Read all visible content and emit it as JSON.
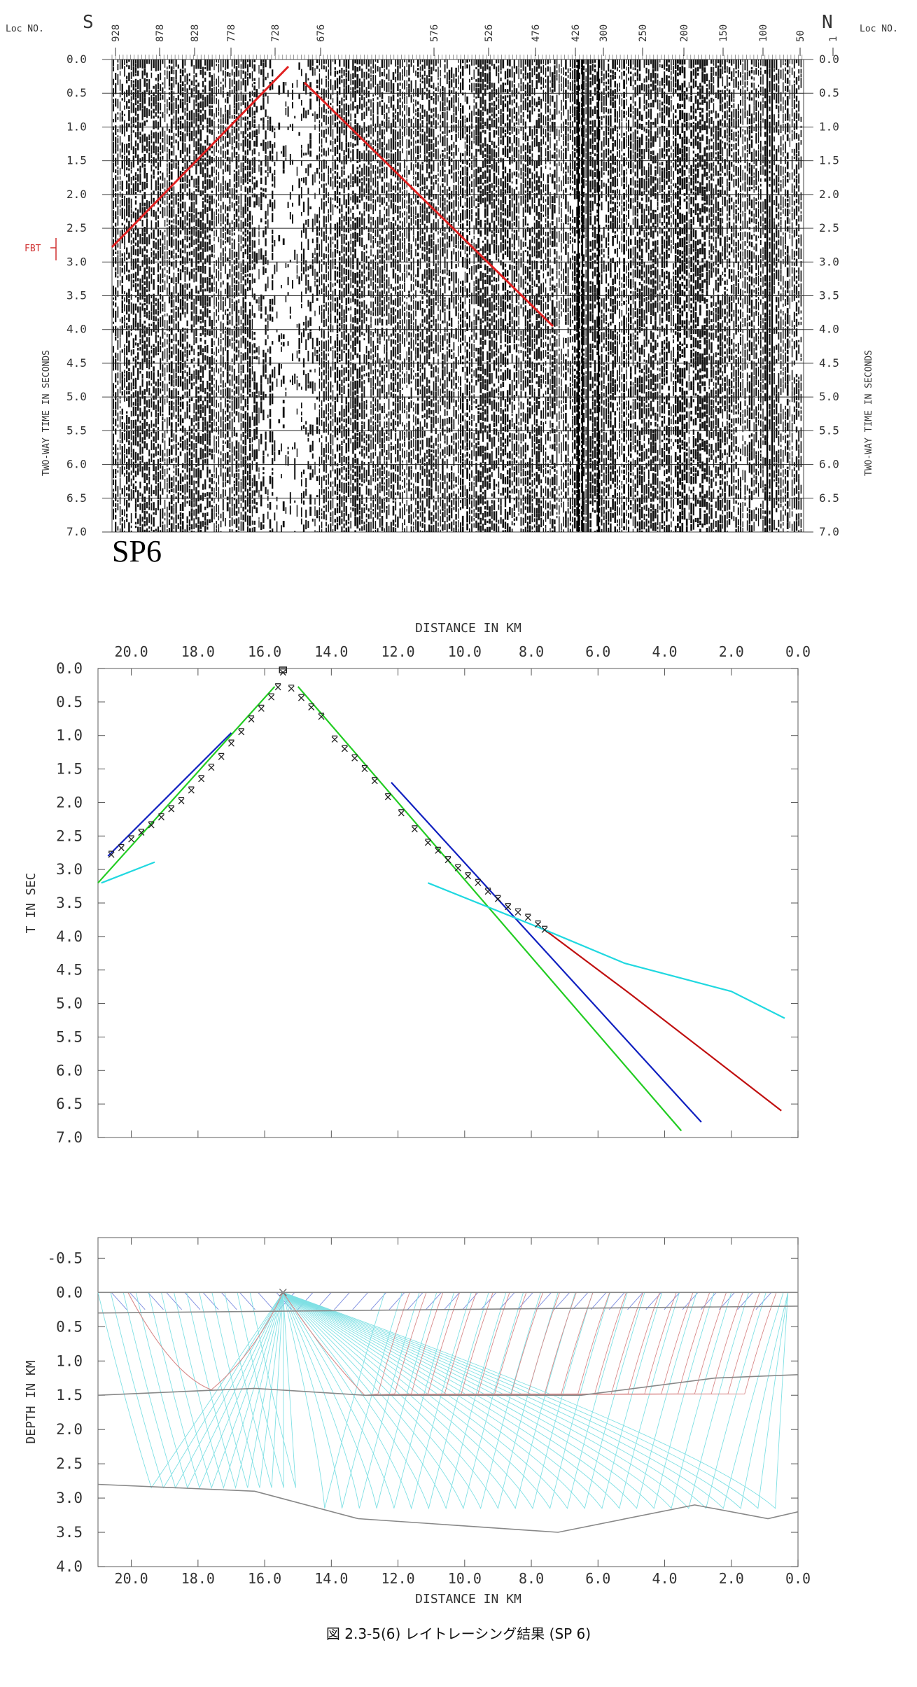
{
  "seismic": {
    "loc_label_left": "Loc NO.",
    "loc_label_right": "Loc NO.",
    "dir_left": "S",
    "dir_right": "N",
    "top_locs": [
      "928",
      "878",
      "828",
      "778",
      "728",
      "676",
      "576",
      "526",
      "476",
      "426",
      "300",
      "250",
      "200",
      "150",
      "100",
      "50",
      "1"
    ],
    "time_ticks": [
      "0.0",
      "0.5",
      "1.0",
      "1.5",
      "2.0",
      "2.5",
      "3.0",
      "3.5",
      "4.0",
      "4.5",
      "5.0",
      "5.5",
      "6.0",
      "6.5",
      "7.0"
    ],
    "axis_label": "TWO-WAY TIME IN SECONDS",
    "fbt_label": "FBT",
    "sp_label": "SP6",
    "pick_line_color": "#e02020"
  },
  "tt": {
    "title": "DISTANCE IN KM",
    "ylabel": "T IN SEC",
    "x_ticks": [
      "20.0",
      "18.0",
      "16.0",
      "14.0",
      "12.0",
      "10.0",
      "8.0",
      "6.0",
      "4.0",
      "2.0",
      "0.0"
    ],
    "y_ticks": [
      "0.0",
      "0.5",
      "1.0",
      "1.5",
      "2.0",
      "2.5",
      "3.0",
      "3.5",
      "4.0",
      "4.5",
      "5.0",
      "5.5",
      "6.0",
      "6.5",
      "7.0"
    ],
    "colors": {
      "green": "#22cc22",
      "blue": "#1020c0",
      "red": "#c01010",
      "cyan": "#20d8e0"
    }
  },
  "depth": {
    "xlabel": "DISTANCE IN KM",
    "ylabel": "DEPTH IN KM",
    "x_ticks": [
      "20.0",
      "18.0",
      "16.0",
      "14.0",
      "12.0",
      "10.0",
      "8.0",
      "6.0",
      "4.0",
      "2.0",
      "0.0"
    ],
    "y_ticks": [
      "-0.5",
      "0.0",
      "0.5",
      "1.0",
      "1.5",
      "2.0",
      "2.5",
      "3.0",
      "3.5",
      "4.0"
    ]
  },
  "chart_data": [
    {
      "type": "line",
      "xlabel": "DISTANCE IN KM",
      "ylabel": "T IN SEC",
      "xlim": [
        21,
        0
      ],
      "ylim": [
        0,
        7
      ],
      "series": [
        {
          "color": "green",
          "x": [
            21,
            15.7
          ],
          "y": [
            3.2,
            0.27
          ]
        },
        {
          "color": "green",
          "x": [
            15.0,
            3.5
          ],
          "y": [
            0.27,
            6.9
          ]
        },
        {
          "color": "blue",
          "x": [
            20.7,
            17.0
          ],
          "y": [
            2.8,
            0.96
          ]
        },
        {
          "color": "blue",
          "x": [
            12.2,
            2.9
          ],
          "y": [
            1.7,
            6.77
          ]
        },
        {
          "color": "red",
          "x": [
            7.6,
            5.0,
            0.5
          ],
          "y": [
            3.9,
            4.87,
            6.6
          ]
        },
        {
          "color": "cyan",
          "x": [
            20.9,
            19.3
          ],
          "y": [
            3.2,
            2.89
          ]
        },
        {
          "color": "cyan",
          "x": [
            11.1,
            7.6,
            5.2,
            2.0,
            0.4
          ],
          "y": [
            3.2,
            3.9,
            4.4,
            4.82,
            5.22
          ]
        }
      ],
      "picks_left": {
        "x": [
          20.6,
          20.3,
          20.0,
          19.7,
          19.4,
          19.1,
          18.8,
          18.5,
          18.2,
          17.9,
          17.6,
          17.3,
          17.0,
          16.7,
          16.4,
          16.1,
          15.8,
          15.6,
          15.45
        ],
        "y": [
          2.78,
          2.68,
          2.55,
          2.45,
          2.34,
          2.22,
          2.1,
          1.98,
          1.82,
          1.65,
          1.48,
          1.32,
          1.12,
          0.95,
          0.76,
          0.6,
          0.43,
          0.28,
          0.06
        ]
      },
      "picks_right": {
        "x": [
          15.2,
          14.9,
          14.6,
          14.3,
          13.9,
          13.6,
          13.3,
          13.0,
          12.7,
          12.3,
          11.9,
          11.5,
          11.1,
          10.8,
          10.5,
          10.2,
          9.9,
          9.6,
          9.3,
          9.0,
          8.7,
          8.4,
          8.1,
          7.8,
          7.6
        ],
        "y": [
          0.3,
          0.44,
          0.58,
          0.72,
          1.06,
          1.2,
          1.34,
          1.5,
          1.68,
          1.92,
          2.16,
          2.4,
          2.6,
          2.72,
          2.86,
          2.98,
          3.1,
          3.2,
          3.33,
          3.44,
          3.56,
          3.64,
          3.72,
          3.82,
          3.9
        ]
      }
    },
    {
      "type": "line",
      "xlabel": "DISTANCE IN KM",
      "ylabel": "DEPTH IN KM",
      "xlim": [
        21,
        0
      ],
      "ylim": [
        -0.8,
        4
      ],
      "series": [
        {
          "name": "surface",
          "x": [
            21,
            0
          ],
          "y": [
            0,
            0
          ]
        },
        {
          "name": "boundary1",
          "x": [
            21,
            0
          ],
          "y": [
            0.3,
            0.2
          ]
        },
        {
          "name": "boundary2",
          "x": [
            21,
            16.3,
            13,
            9.5,
            6.5,
            2.5,
            0
          ],
          "y": [
            1.5,
            1.4,
            1.5,
            1.5,
            1.5,
            1.25,
            1.2
          ]
        },
        {
          "name": "boundary3",
          "x": [
            21,
            16.3,
            13.2,
            7.2,
            3.1,
            0.9,
            0
          ],
          "y": [
            2.8,
            2.9,
            3.3,
            3.5,
            3.1,
            3.3,
            3.2
          ]
        }
      ]
    }
  ]
}
